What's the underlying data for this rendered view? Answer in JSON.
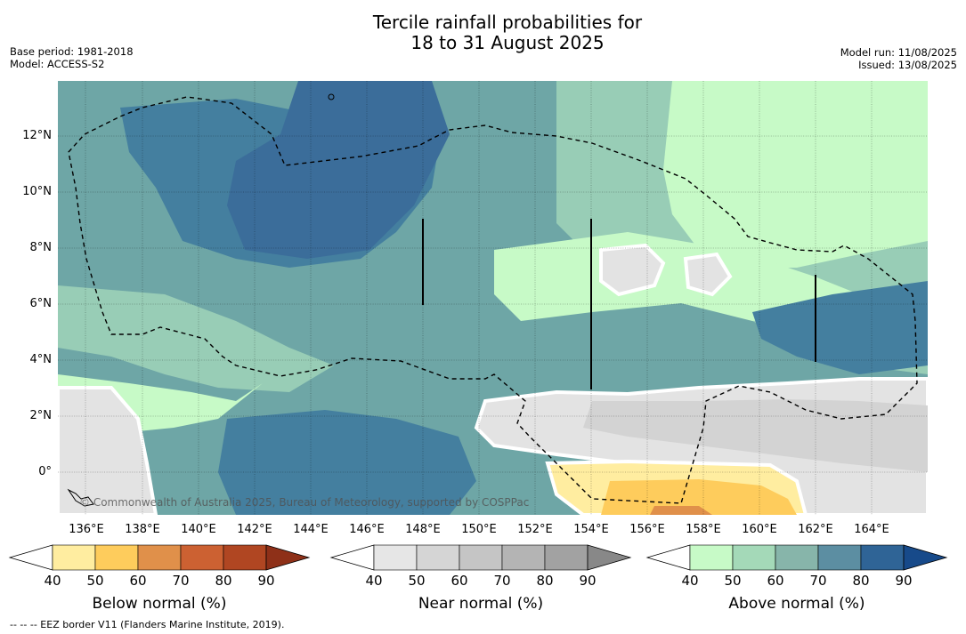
{
  "title": {
    "line1": "Tercile rainfall probabilities for",
    "line2": "18 to 31 August 2025"
  },
  "meta_left": {
    "base_period": "Base period: 1981-2018",
    "model": "Model: ACCESS-S2"
  },
  "meta_right": {
    "model_run": "Model run: 11/08/2025",
    "issued": "Issued: 13/08/2025"
  },
  "map": {
    "lat_labels": [
      "12°N",
      "10°N",
      "8°N",
      "6°N",
      "4°N",
      "2°N",
      "0°"
    ],
    "lon_labels": [
      "136°E",
      "138°E",
      "140°E",
      "142°E",
      "144°E",
      "146°E",
      "148°E",
      "150°E",
      "152°E",
      "154°E",
      "156°E",
      "158°E",
      "160°E",
      "162°E",
      "164°E"
    ],
    "copyright": "© Commonwealth of Australia 2025, Bureau of Meteorology, supported by COSPPac"
  },
  "colorbars": [
    {
      "title": "Below normal (%)",
      "ticks": [
        "40",
        "50",
        "60",
        "70",
        "80",
        "90"
      ],
      "colors": [
        "#ffeda0",
        "#fecc5c",
        "#e0904a",
        "#cc6132",
        "#b04622",
        "#8e3018"
      ],
      "under_color": "#ffffff"
    },
    {
      "title": "Near normal (%)",
      "ticks": [
        "40",
        "50",
        "60",
        "70",
        "80",
        "90"
      ],
      "colors": [
        "#e6e6e6",
        "#d5d5d5",
        "#c5c5c5",
        "#b4b4b4",
        "#a2a2a2",
        "#888888"
      ],
      "under_color": "#ffffff"
    },
    {
      "title": "Above normal (%)",
      "ticks": [
        "40",
        "50",
        "60",
        "70",
        "80",
        "90"
      ],
      "colors": [
        "#c7fac7",
        "#a4d9b8",
        "#87b5aa",
        "#5c8ea2",
        "#2f6496",
        "#174a8a"
      ],
      "under_color": "#ffffff"
    }
  ],
  "footer": "--  --  -- EEZ border V11 (Flanders Marine Institute, 2019)."
}
